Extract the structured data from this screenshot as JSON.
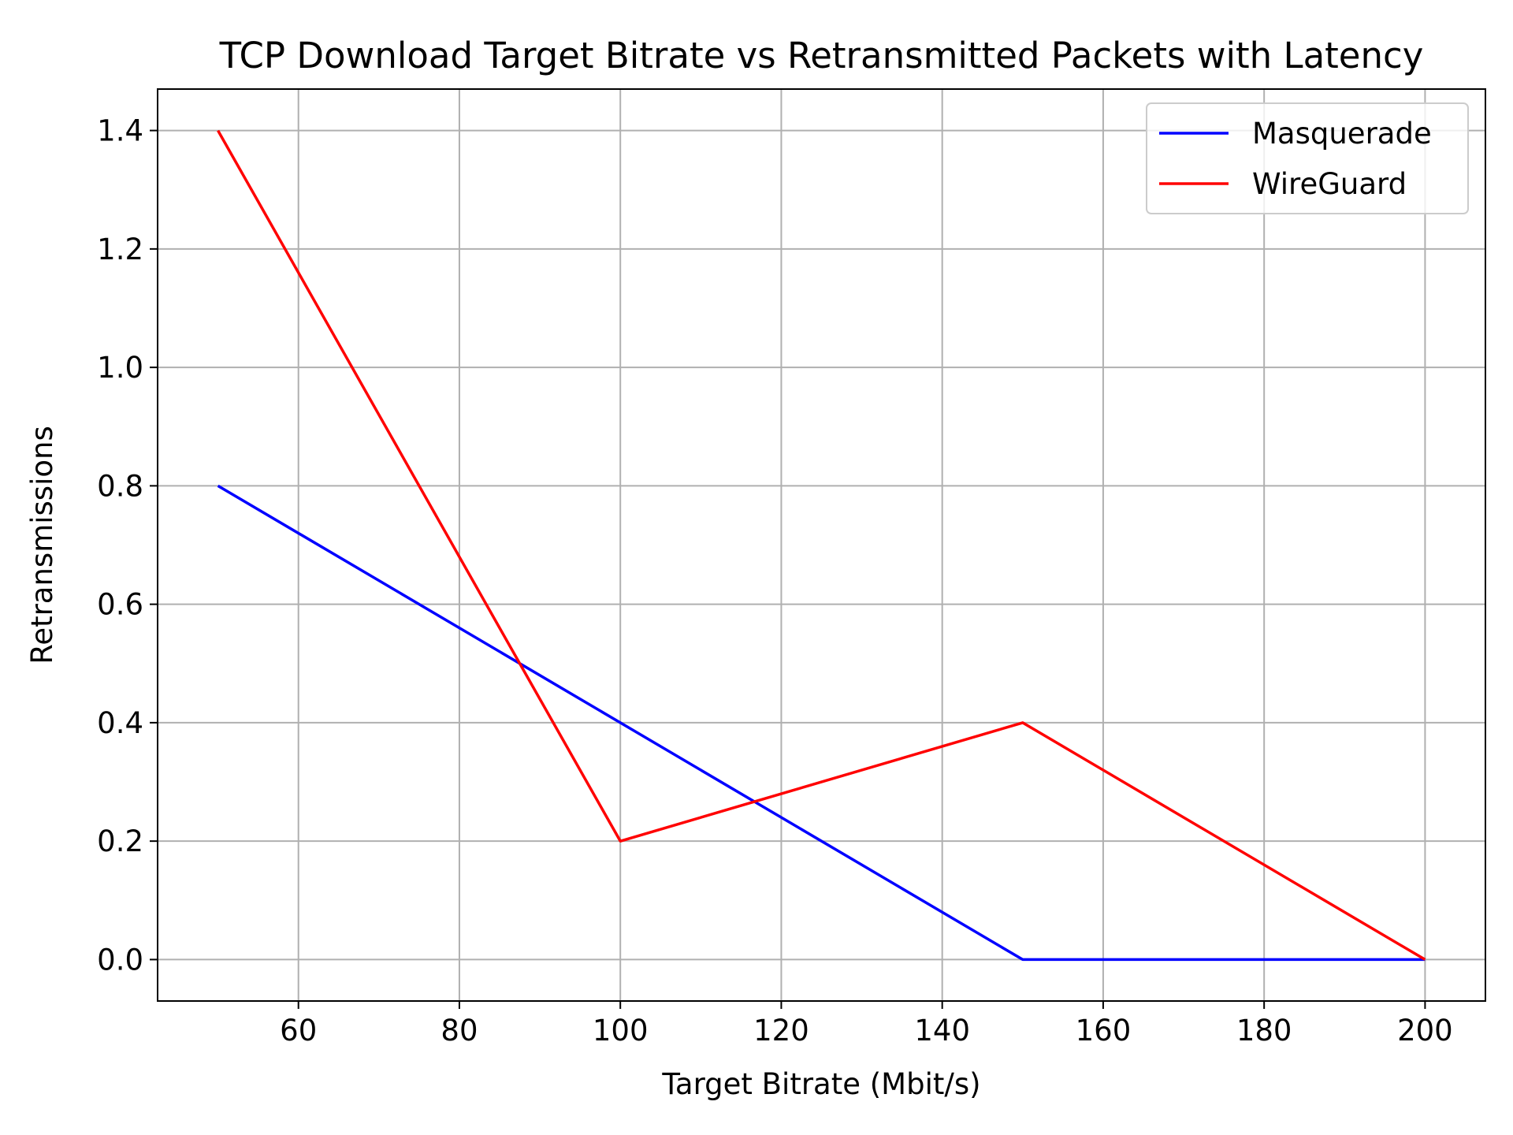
{
  "chart_data": {
    "type": "line",
    "title": "TCP Download Target Bitrate vs Retransmitted Packets with Latency",
    "xlabel": "Target Bitrate (Mbit/s)",
    "ylabel": "Retransmissions",
    "x": [
      50,
      100,
      150,
      200
    ],
    "xlim": [
      42.5,
      207.5
    ],
    "ylim": [
      -0.07,
      1.47
    ],
    "xticks": [
      60,
      80,
      100,
      120,
      140,
      160,
      180,
      200
    ],
    "yticks": [
      0.0,
      0.2,
      0.4,
      0.6,
      0.8,
      1.0,
      1.2,
      1.4
    ],
    "xtick_labels": [
      "60",
      "80",
      "100",
      "120",
      "140",
      "160",
      "180",
      "200"
    ],
    "ytick_labels": [
      "0.0",
      "0.2",
      "0.4",
      "0.6",
      "0.8",
      "1.0",
      "1.2",
      "1.4"
    ],
    "grid": true,
    "legend_position": "top-right",
    "series": [
      {
        "name": "Masquerade",
        "values": [
          0.8,
          0.4,
          0.0,
          0.0
        ],
        "color": "#0000ff"
      },
      {
        "name": "WireGuard",
        "values": [
          1.4,
          0.2,
          0.4,
          0.0
        ],
        "color": "#ff0000"
      }
    ]
  }
}
